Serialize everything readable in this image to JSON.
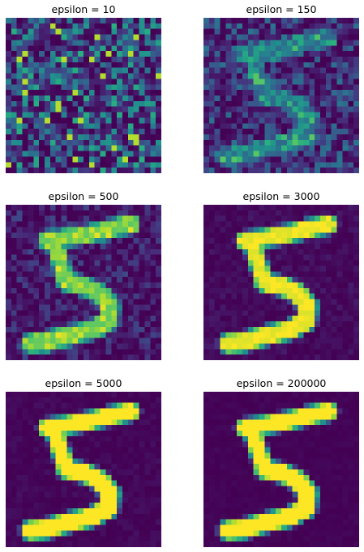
{
  "colors": {
    "colormap": "viridis",
    "background": "#ffffff",
    "text": "#000000"
  },
  "panels": [
    {
      "title": "epsilon = 10",
      "epsilon": 10,
      "signal": 0.0,
      "noise": 0.4
    },
    {
      "title": "epsilon = 150",
      "epsilon": 150,
      "signal": 0.35,
      "noise": 0.25
    },
    {
      "title": "epsilon = 500",
      "epsilon": 500,
      "signal": 0.75,
      "noise": 0.14
    },
    {
      "title": "epsilon = 3000",
      "epsilon": 3000,
      "signal": 0.95,
      "noise": 0.05
    },
    {
      "title": "epsilon = 5000",
      "epsilon": 5000,
      "signal": 1.0,
      "noise": 0.03
    },
    {
      "title": "epsilon = 200000",
      "epsilon": 200000,
      "signal": 1.0,
      "noise": 0.015
    }
  ]
}
